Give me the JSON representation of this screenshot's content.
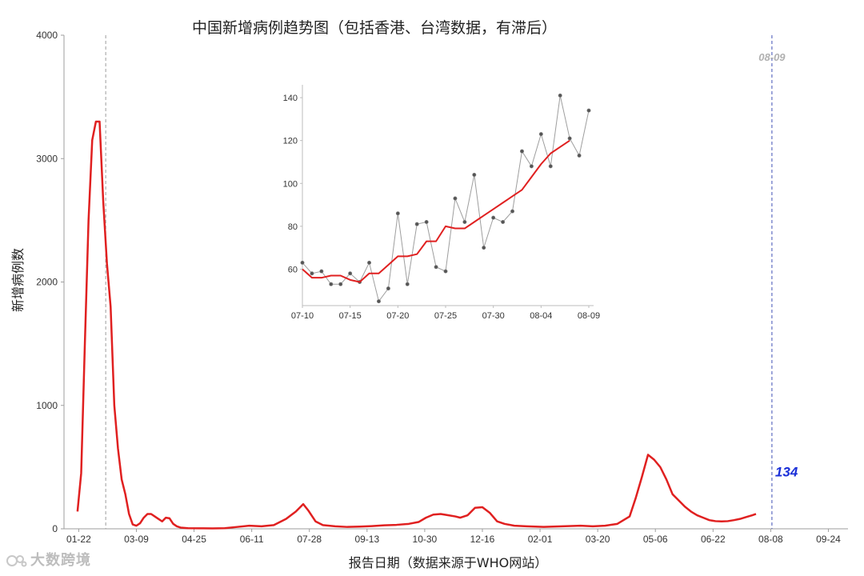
{
  "chart_data": {
    "type": "line",
    "title": "中国新增病例趋势图（包括香港、台湾数据，有滞后）",
    "xlabel": "报告日期（数据来源于WHO网站）",
    "ylabel": "新增病例数",
    "x_origin": "2020-01-21",
    "ylim": [
      0,
      4000
    ],
    "xlim": [
      "2020-01-10",
      "2021-10-10"
    ],
    "y_ticks": [
      0,
      1000,
      2000,
      3000,
      4000
    ],
    "x_ticks": [
      "01-22",
      "03-09",
      "04-25",
      "06-11",
      "07-28",
      "09-13",
      "10-30",
      "12-16",
      "02-01",
      "03-20",
      "05-06",
      "06-22",
      "08-08",
      "09-24"
    ],
    "x_tick_dates": [
      "2020-01-22",
      "2020-03-09",
      "2020-04-25",
      "2020-06-11",
      "2020-07-28",
      "2020-09-13",
      "2020-10-30",
      "2020-12-16",
      "2021-02-01",
      "2021-03-20",
      "2021-05-06",
      "2021-06-22",
      "2021-08-08",
      "2021-09-24"
    ],
    "marker_date": "2020-02-13",
    "latest_date": "2021-08-09",
    "latest_date_label": "08-09",
    "latest_value": 134,
    "latest_value_label": "134",
    "series": [
      {
        "name": "",
        "points": [
          [
            0,
            140
          ],
          [
            3,
            450
          ],
          [
            6,
            1500
          ],
          [
            9,
            2500
          ],
          [
            12,
            3150
          ],
          [
            15,
            3300
          ],
          [
            18,
            3300
          ],
          [
            21,
            2650
          ],
          [
            24,
            2150
          ],
          [
            27,
            1800
          ],
          [
            30,
            1000
          ],
          [
            33,
            650
          ],
          [
            36,
            400
          ],
          [
            39,
            280
          ],
          [
            42,
            120
          ],
          [
            45,
            35
          ],
          [
            48,
            25
          ],
          [
            51,
            45
          ],
          [
            54,
            90
          ],
          [
            57,
            120
          ],
          [
            60,
            120
          ],
          [
            63,
            100
          ],
          [
            66,
            80
          ],
          [
            69,
            60
          ],
          [
            72,
            90
          ],
          [
            75,
            85
          ],
          [
            78,
            40
          ],
          [
            81,
            20
          ],
          [
            84,
            10
          ],
          [
            90,
            5
          ],
          [
            100,
            4
          ],
          [
            110,
            3
          ],
          [
            120,
            5
          ],
          [
            130,
            15
          ],
          [
            140,
            25
          ],
          [
            150,
            20
          ],
          [
            160,
            30
          ],
          [
            170,
            80
          ],
          [
            178,
            140
          ],
          [
            184,
            200
          ],
          [
            188,
            150
          ],
          [
            194,
            60
          ],
          [
            200,
            30
          ],
          [
            210,
            20
          ],
          [
            220,
            15
          ],
          [
            230,
            18
          ],
          [
            240,
            22
          ],
          [
            250,
            28
          ],
          [
            260,
            32
          ],
          [
            270,
            40
          ],
          [
            278,
            55
          ],
          [
            284,
            90
          ],
          [
            290,
            115
          ],
          [
            296,
            120
          ],
          [
            302,
            110
          ],
          [
            308,
            100
          ],
          [
            312,
            90
          ],
          [
            318,
            110
          ],
          [
            324,
            170
          ],
          [
            330,
            175
          ],
          [
            336,
            130
          ],
          [
            342,
            60
          ],
          [
            348,
            40
          ],
          [
            356,
            25
          ],
          [
            366,
            20
          ],
          [
            380,
            15
          ],
          [
            395,
            20
          ],
          [
            410,
            25
          ],
          [
            420,
            20
          ],
          [
            430,
            25
          ],
          [
            440,
            40
          ],
          [
            450,
            100
          ],
          [
            455,
            250
          ],
          [
            460,
            420
          ],
          [
            465,
            600
          ],
          [
            470,
            560
          ],
          [
            475,
            500
          ],
          [
            480,
            400
          ],
          [
            485,
            280
          ],
          [
            490,
            230
          ],
          [
            495,
            180
          ],
          [
            500,
            140
          ],
          [
            505,
            110
          ],
          [
            510,
            90
          ],
          [
            515,
            70
          ],
          [
            520,
            62
          ],
          [
            525,
            60
          ],
          [
            530,
            62
          ],
          [
            535,
            70
          ],
          [
            540,
            80
          ],
          [
            545,
            95
          ],
          [
            550,
            110
          ],
          [
            553,
            120
          ]
        ]
      }
    ],
    "inset": {
      "type": "line",
      "x_ticks": [
        "07-10",
        "07-15",
        "07-20",
        "07-25",
        "07-30",
        "08-04",
        "08-09"
      ],
      "y_ticks": [
        60,
        80,
        100,
        120,
        140
      ],
      "ylim": [
        43,
        146
      ],
      "xlim": [
        "2021-07-10",
        "2021-08-09"
      ],
      "daily_values": [
        63,
        58,
        59,
        53,
        53,
        58,
        54,
        63,
        45,
        51,
        86,
        53,
        81,
        82,
        61,
        59,
        93,
        82,
        104,
        70,
        84,
        82,
        87,
        115,
        108,
        123,
        108,
        141,
        121,
        113,
        134
      ],
      "trend_values": [
        60,
        56,
        56,
        57,
        57,
        55,
        54,
        58,
        58,
        62,
        66,
        66,
        67,
        73,
        73,
        80,
        79,
        79,
        82,
        85,
        88,
        91,
        94,
        97,
        103,
        109,
        114,
        117,
        120
      ]
    }
  }
}
